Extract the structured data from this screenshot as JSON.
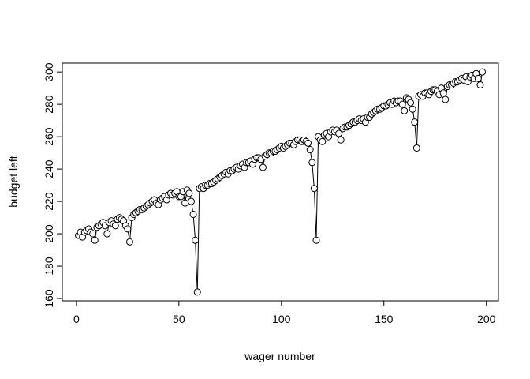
{
  "chart_data": {
    "type": "scatter-line",
    "xlabel": "wager number",
    "ylabel": "budget left",
    "x": [
      1,
      2,
      3,
      4,
      5,
      6,
      7,
      8,
      9,
      10,
      11,
      12,
      13,
      14,
      15,
      16,
      17,
      18,
      19,
      20,
      21,
      22,
      23,
      24,
      25,
      26,
      27,
      28,
      29,
      30,
      31,
      32,
      33,
      34,
      35,
      36,
      37,
      38,
      39,
      40,
      41,
      42,
      43,
      44,
      45,
      46,
      47,
      48,
      49,
      50,
      51,
      52,
      53,
      54,
      55,
      56,
      57,
      58,
      59,
      60,
      61,
      62,
      63,
      64,
      65,
      66,
      67,
      68,
      69,
      70,
      71,
      72,
      73,
      74,
      75,
      76,
      77,
      78,
      79,
      80,
      81,
      82,
      83,
      84,
      85,
      86,
      87,
      88,
      89,
      90,
      91,
      92,
      93,
      94,
      95,
      96,
      97,
      98,
      99,
      100,
      101,
      102,
      103,
      104,
      105,
      106,
      107,
      108,
      109,
      110,
      111,
      112,
      113,
      114,
      115,
      116,
      117,
      118,
      119,
      120,
      121,
      122,
      123,
      124,
      125,
      126,
      127,
      128,
      129,
      130,
      131,
      132,
      133,
      134,
      135,
      136,
      137,
      138,
      139,
      140,
      141,
      142,
      143,
      144,
      145,
      146,
      147,
      148,
      149,
      150,
      151,
      152,
      153,
      154,
      155,
      156,
      157,
      158,
      159,
      160,
      161,
      162,
      163,
      164,
      165,
      166,
      167,
      168,
      169,
      170,
      171,
      172,
      173,
      174,
      175,
      176,
      177,
      178,
      179,
      180,
      181,
      182,
      183,
      184,
      185,
      186,
      187,
      188,
      189,
      190,
      191,
      192,
      193,
      194,
      195,
      196,
      197,
      198
    ],
    "values": [
      199,
      201,
      198,
      201,
      202,
      203,
      201,
      200,
      196,
      204,
      205,
      206,
      207,
      205,
      200,
      207,
      208,
      206,
      205,
      209,
      210,
      209,
      208,
      205,
      203,
      195,
      210,
      212,
      213,
      214,
      215,
      215,
      216,
      217,
      218,
      219,
      220,
      221,
      219,
      218,
      221,
      222,
      223,
      221,
      224,
      225,
      224,
      225,
      226,
      223,
      223,
      226,
      219,
      227,
      225,
      220,
      212,
      196,
      164,
      228,
      229,
      228,
      230,
      230,
      231,
      231,
      232,
      233,
      234,
      235,
      236,
      237,
      238,
      237,
      239,
      239,
      240,
      241,
      240,
      242,
      243,
      241,
      244,
      244,
      245,
      243,
      246,
      247,
      247,
      246,
      241,
      248,
      249,
      250,
      250,
      251,
      251,
      252,
      253,
      254,
      253,
      254,
      255,
      256,
      256,
      255,
      257,
      258,
      258,
      257,
      258,
      257,
      256,
      252,
      244,
      228,
      196,
      260,
      258,
      257,
      261,
      262,
      260,
      263,
      264,
      263,
      264,
      262,
      258,
      265,
      266,
      266,
      267,
      268,
      269,
      269,
      270,
      271,
      270,
      271,
      269,
      272,
      272,
      274,
      275,
      276,
      277,
      277,
      278,
      279,
      279,
      280,
      281,
      280,
      282,
      281,
      282,
      282,
      280,
      276,
      284,
      283,
      281,
      277,
      269,
      253,
      285,
      286,
      285,
      287,
      287,
      286,
      288,
      289,
      289,
      288,
      286,
      290,
      287,
      283,
      291,
      292,
      292,
      293,
      294,
      294,
      295,
      296,
      295,
      297,
      294,
      297,
      298,
      296,
      299,
      296,
      292,
      300
    ],
    "color": "#000000",
    "xlim": [
      -6.88,
      205.88
    ],
    "ylim": [
      158.56,
      305.44
    ],
    "xticks": [
      0,
      50,
      100,
      150,
      200
    ],
    "yticks": [
      160,
      180,
      200,
      220,
      240,
      260,
      280,
      300
    ]
  }
}
